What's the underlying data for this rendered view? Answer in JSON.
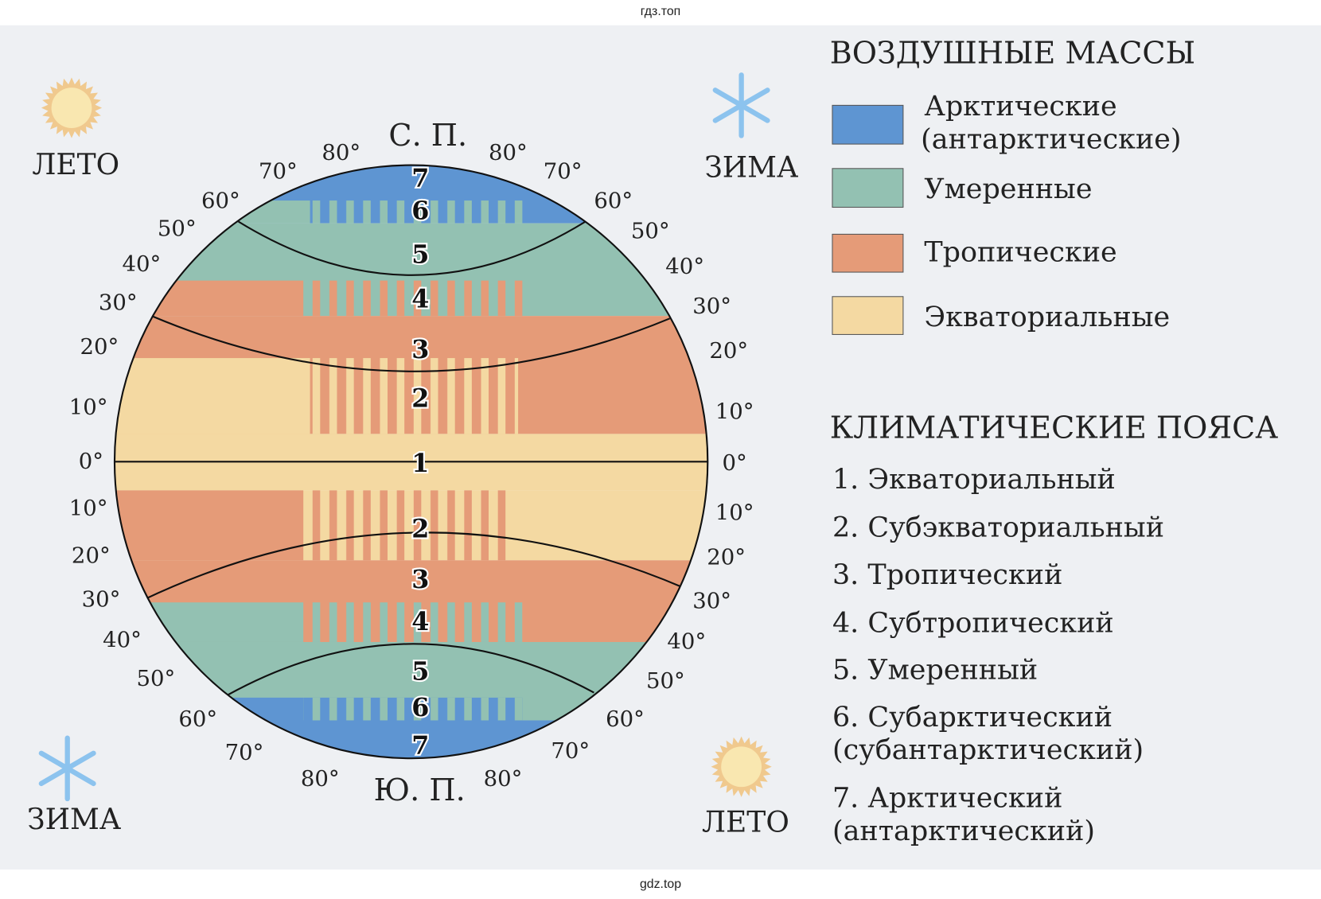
{
  "watermark_top": "гдз.топ",
  "watermark_bottom": "gdz.top",
  "colors": {
    "arctic": "#5e95d2",
    "temperate": "#93c1b2",
    "tropical": "#e59b78",
    "equatorial": "#f4d9a2",
    "background": "#eef0f3"
  },
  "poles": {
    "north": "С. П.",
    "south": "Ю. П."
  },
  "seasons": {
    "top_left": "ЛЕТО",
    "top_right": "ЗИМА",
    "bottom_left": "ЗИМА",
    "bottom_right": "ЛЕТО"
  },
  "icons": {
    "top_left": "sun-icon",
    "top_right": "snowflake-icon",
    "bottom_left": "snowflake-icon",
    "bottom_right": "sun-icon"
  },
  "latitudes_left": [
    "80°",
    "70°",
    "60°",
    "50°",
    "40°",
    "30°",
    "20°",
    "10°",
    "0°",
    "10°",
    "20°",
    "30°",
    "40°",
    "50°",
    "60°",
    "70°",
    "80°"
  ],
  "latitudes_right": [
    "80°",
    "70°",
    "60°",
    "50°",
    "40°",
    "30°",
    "20°",
    "10°",
    "0°",
    "10°",
    "20°",
    "30°",
    "40°",
    "50°",
    "60°",
    "70°",
    "80°"
  ],
  "belt_numbers": [
    "7",
    "6",
    "5",
    "4",
    "3",
    "2",
    "1",
    "2",
    "3",
    "4",
    "5",
    "6",
    "7"
  ],
  "air_masses": {
    "title": "ВОЗДУШНЫЕ МАССЫ",
    "items": [
      {
        "line1": "Арктические",
        "line2": "(антарктические)",
        "color": "#5e95d2"
      },
      {
        "line1": "Умеренные",
        "line2": "",
        "color": "#93c1b2"
      },
      {
        "line1": "Тропические",
        "line2": "",
        "color": "#e59b78"
      },
      {
        "line1": "Экваториальные",
        "line2": "",
        "color": "#f4d9a2"
      }
    ]
  },
  "climate_belts": {
    "title": "КЛИМАТИЧЕСКИЕ ПОЯСА",
    "items": [
      {
        "line1": "1. Экваториальный",
        "line2": ""
      },
      {
        "line1": "2. Субэкваториальный",
        "line2": ""
      },
      {
        "line1": "3. Тропический",
        "line2": ""
      },
      {
        "line1": "4. Субтропический",
        "line2": ""
      },
      {
        "line1": "5. Умеренный",
        "line2": ""
      },
      {
        "line1": "6. Субарктический",
        "line2": "(субантарктический)"
      },
      {
        "line1": "7. Арктический",
        "line2": "(антарктический)"
      }
    ]
  }
}
